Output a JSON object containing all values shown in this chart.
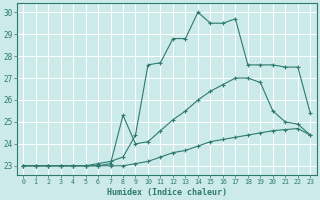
{
  "xlabel": "Humidex (Indice chaleur)",
  "bg_color": "#cceaea",
  "grid_color": "#ffffff",
  "line_color": "#2d7a6e",
  "xlim": [
    -0.5,
    23.5
  ],
  "ylim": [
    22.6,
    30.4
  ],
  "yticks": [
    23,
    24,
    25,
    26,
    27,
    28,
    29,
    30
  ],
  "xticks": [
    0,
    1,
    2,
    3,
    4,
    5,
    6,
    7,
    8,
    9,
    10,
    11,
    12,
    13,
    14,
    15,
    16,
    17,
    18,
    19,
    20,
    21,
    22,
    23
  ],
  "line1_x": [
    0,
    1,
    2,
    3,
    4,
    5,
    6,
    7,
    8,
    9,
    10,
    11,
    12,
    13,
    14,
    15,
    16,
    17,
    18,
    19,
    20,
    21,
    22,
    23
  ],
  "line1_y": [
    23.0,
    23.0,
    23.0,
    23.0,
    23.0,
    23.0,
    23.0,
    23.0,
    23.0,
    23.1,
    23.2,
    23.4,
    23.6,
    23.7,
    23.9,
    24.1,
    24.2,
    24.3,
    24.4,
    24.5,
    24.6,
    24.65,
    24.7,
    24.4
  ],
  "line2_x": [
    0,
    1,
    2,
    3,
    4,
    5,
    6,
    7,
    8,
    9,
    10,
    11,
    12,
    13,
    14,
    15,
    16,
    17,
    18,
    19,
    20,
    21,
    22,
    23
  ],
  "line2_y": [
    23.0,
    23.0,
    23.0,
    23.0,
    23.0,
    23.0,
    23.0,
    23.1,
    25.3,
    24.0,
    24.1,
    24.6,
    25.1,
    25.5,
    26.0,
    26.4,
    26.7,
    27.0,
    27.0,
    26.8,
    25.5,
    25.0,
    24.9,
    24.4
  ],
  "line3_x": [
    0,
    1,
    2,
    3,
    4,
    5,
    6,
    7,
    8,
    9,
    10,
    11,
    12,
    13,
    14,
    15,
    16,
    17,
    18,
    19,
    20,
    21,
    22,
    23
  ],
  "line3_y": [
    23.0,
    23.0,
    23.0,
    23.0,
    23.0,
    23.0,
    23.1,
    23.2,
    23.4,
    24.4,
    27.6,
    27.7,
    28.8,
    28.8,
    30.0,
    29.5,
    29.5,
    29.7,
    27.6,
    27.6,
    27.6,
    27.5,
    27.5,
    25.4
  ]
}
